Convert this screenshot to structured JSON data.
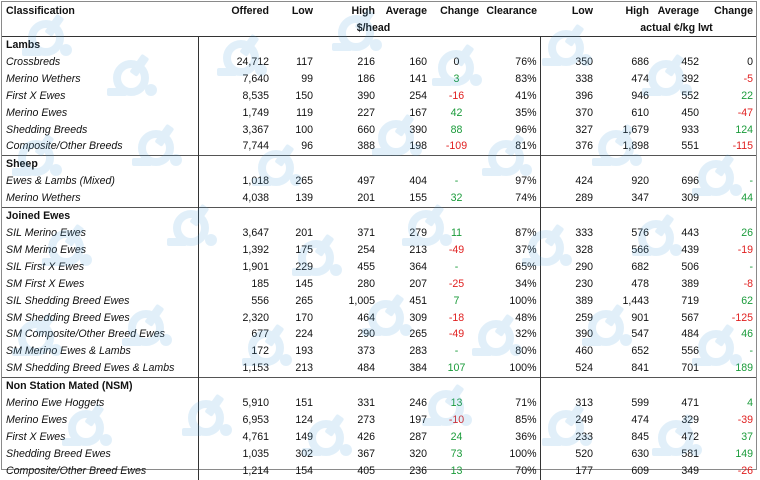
{
  "headers": {
    "classification": "Classification",
    "offered": "Offered",
    "low": "Low",
    "high": "High",
    "average": "Average",
    "change": "Change",
    "clearance": "Clearance",
    "low2": "Low",
    "high2": "High",
    "average2": "Average",
    "change2": "Change",
    "unit_head": "$/head",
    "unit_kg": "actual ¢/kg lwt"
  },
  "sections": [
    {
      "title": "Lambs",
      "rows": [
        {
          "name": "Crossbreds",
          "offered": "24,712",
          "low": "117",
          "high": "216",
          "avg": "160",
          "change": "0",
          "change_sign": "zero",
          "clearance": "76%",
          "low2": "350",
          "high2": "686",
          "avg2": "452",
          "change2": "0",
          "change2_sign": "zero"
        },
        {
          "name": "Merino Wethers",
          "offered": "7,640",
          "low": "99",
          "high": "186",
          "avg": "141",
          "change": "3",
          "change_sign": "pos",
          "clearance": "83%",
          "low2": "338",
          "high2": "474",
          "avg2": "392",
          "change2": "-5",
          "change2_sign": "neg"
        },
        {
          "name": "First X Ewes",
          "offered": "8,535",
          "low": "150",
          "high": "390",
          "avg": "254",
          "change": "-16",
          "change_sign": "neg",
          "clearance": "41%",
          "low2": "396",
          "high2": "946",
          "avg2": "552",
          "change2": "22",
          "change2_sign": "pos"
        },
        {
          "name": "Merino Ewes",
          "offered": "1,749",
          "low": "119",
          "high": "227",
          "avg": "167",
          "change": "42",
          "change_sign": "pos",
          "clearance": "35%",
          "low2": "370",
          "high2": "610",
          "avg2": "450",
          "change2": "-47",
          "change2_sign": "neg"
        },
        {
          "name": "Shedding Breeds",
          "offered": "3,367",
          "low": "100",
          "high": "660",
          "avg": "390",
          "change": "88",
          "change_sign": "pos",
          "clearance": "96%",
          "low2": "327",
          "high2": "1,679",
          "avg2": "933",
          "change2": "124",
          "change2_sign": "pos"
        },
        {
          "name": "Composite/Other Breeds",
          "offered": "7,744",
          "low": "96",
          "high": "388",
          "avg": "198",
          "change": "-109",
          "change_sign": "neg",
          "clearance": "81%",
          "low2": "376",
          "high2": "1,898",
          "avg2": "551",
          "change2": "-115",
          "change2_sign": "neg"
        }
      ]
    },
    {
      "title": "Sheep",
      "rows": [
        {
          "name": "Ewes & Lambs (Mixed)",
          "offered": "1,018",
          "low": "265",
          "high": "497",
          "avg": "404",
          "change": "-",
          "change_sign": "pos",
          "clearance": "97%",
          "low2": "424",
          "high2": "920",
          "avg2": "696",
          "change2": "-",
          "change2_sign": "pos"
        },
        {
          "name": "Merino Wethers",
          "offered": "4,038",
          "low": "139",
          "high": "201",
          "avg": "155",
          "change": "32",
          "change_sign": "pos",
          "clearance": "74%",
          "low2": "289",
          "high2": "347",
          "avg2": "309",
          "change2": "44",
          "change2_sign": "pos"
        }
      ]
    },
    {
      "title": "Joined Ewes",
      "rows": [
        {
          "name": "SIL Merino Ewes",
          "offered": "3,647",
          "low": "201",
          "high": "371",
          "avg": "279",
          "change": "11",
          "change_sign": "pos",
          "clearance": "87%",
          "low2": "333",
          "high2": "576",
          "avg2": "443",
          "change2": "26",
          "change2_sign": "pos"
        },
        {
          "name": "SM Merino Ewes",
          "offered": "1,392",
          "low": "175",
          "high": "254",
          "avg": "213",
          "change": "-49",
          "change_sign": "neg",
          "clearance": "37%",
          "low2": "328",
          "high2": "566",
          "avg2": "439",
          "change2": "-19",
          "change2_sign": "neg"
        },
        {
          "name": "SIL First X Ewes",
          "offered": "1,901",
          "low": "229",
          "high": "455",
          "avg": "364",
          "change": "-",
          "change_sign": "pos",
          "clearance": "65%",
          "low2": "290",
          "high2": "682",
          "avg2": "506",
          "change2": "-",
          "change2_sign": "pos"
        },
        {
          "name": "SM First X Ewes",
          "offered": "185",
          "low": "145",
          "high": "280",
          "avg": "207",
          "change": "-25",
          "change_sign": "neg",
          "clearance": "34%",
          "low2": "230",
          "high2": "478",
          "avg2": "389",
          "change2": "-8",
          "change2_sign": "neg"
        },
        {
          "name": "SIL Shedding Breed Ewes",
          "offered": "556",
          "low": "265",
          "high": "1,005",
          "avg": "451",
          "change": "7",
          "change_sign": "pos",
          "clearance": "100%",
          "low2": "389",
          "high2": "1,443",
          "avg2": "719",
          "change2": "62",
          "change2_sign": "pos"
        },
        {
          "name": "SM Shedding Breed Ewes",
          "offered": "2,320",
          "low": "170",
          "high": "464",
          "avg": "309",
          "change": "-18",
          "change_sign": "neg",
          "clearance": "48%",
          "low2": "259",
          "high2": "901",
          "avg2": "567",
          "change2": "-125",
          "change2_sign": "neg"
        },
        {
          "name": "SM Composite/Other Breed Ewes",
          "offered": "677",
          "low": "224",
          "high": "290",
          "avg": "265",
          "change": "-49",
          "change_sign": "neg",
          "clearance": "32%",
          "low2": "390",
          "high2": "547",
          "avg2": "484",
          "change2": "46",
          "change2_sign": "pos"
        },
        {
          "name": "SM Merino Ewes & Lambs",
          "offered": "172",
          "low": "193",
          "high": "373",
          "avg": "283",
          "change": "-",
          "change_sign": "pos",
          "clearance": "80%",
          "low2": "460",
          "high2": "652",
          "avg2": "556",
          "change2": "-",
          "change2_sign": "pos"
        },
        {
          "name": "SM Shedding Breed Ewes & Lambs",
          "offered": "1,153",
          "low": "213",
          "high": "484",
          "avg": "384",
          "change": "107",
          "change_sign": "pos",
          "clearance": "100%",
          "low2": "524",
          "high2": "841",
          "avg2": "701",
          "change2": "189",
          "change2_sign": "pos"
        }
      ]
    },
    {
      "title": "Non Station Mated (NSM)",
      "rows": [
        {
          "name": "Merino Ewe Hoggets",
          "offered": "5,910",
          "low": "151",
          "high": "331",
          "avg": "246",
          "change": "13",
          "change_sign": "pos",
          "clearance": "71%",
          "low2": "313",
          "high2": "599",
          "avg2": "471",
          "change2": "4",
          "change2_sign": "pos"
        },
        {
          "name": "Merino Ewes",
          "offered": "6,953",
          "low": "124",
          "high": "273",
          "avg": "197",
          "change": "-10",
          "change_sign": "neg",
          "clearance": "85%",
          "low2": "249",
          "high2": "474",
          "avg2": "329",
          "change2": "-39",
          "change2_sign": "neg"
        },
        {
          "name": "First X Ewes",
          "offered": "4,761",
          "low": "149",
          "high": "426",
          "avg": "287",
          "change": "24",
          "change_sign": "pos",
          "clearance": "36%",
          "low2": "233",
          "high2": "845",
          "avg2": "472",
          "change2": "37",
          "change2_sign": "pos"
        },
        {
          "name": "Shedding Breed Ewes",
          "offered": "1,035",
          "low": "302",
          "high": "367",
          "avg": "320",
          "change": "73",
          "change_sign": "pos",
          "clearance": "100%",
          "low2": "520",
          "high2": "630",
          "avg2": "581",
          "change2": "149",
          "change2_sign": "pos"
        },
        {
          "name": "Composite/Other Breed Ewes",
          "offered": "1,214",
          "low": "154",
          "high": "405",
          "avg": "236",
          "change": "13",
          "change_sign": "pos",
          "clearance": "70%",
          "low2": "177",
          "high2": "609",
          "avg2": "349",
          "change2": "-26",
          "change2_sign": "neg"
        }
      ]
    }
  ],
  "watermark_icon": "sheep-logo-icon",
  "colors": {
    "positive": "#1a9b3a",
    "negative": "#e02020",
    "watermark": "#4aa3e0"
  }
}
